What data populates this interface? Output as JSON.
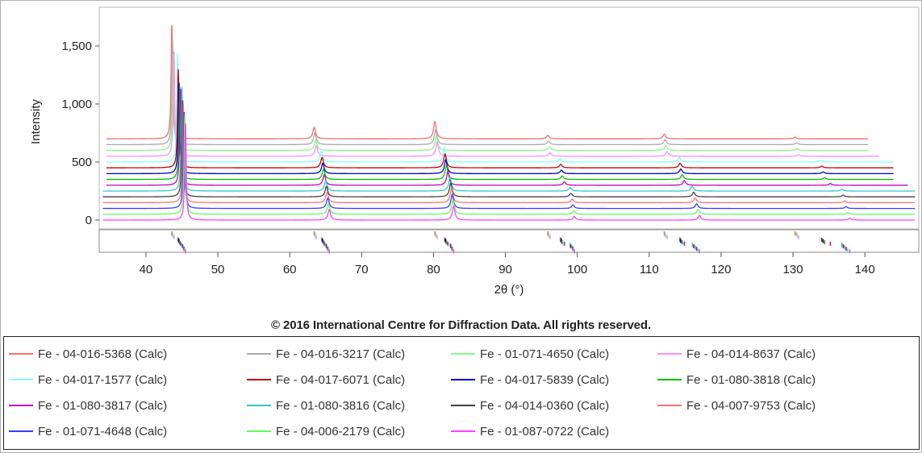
{
  "chart_data": {
    "type": "line",
    "title": "",
    "xlabel": "2θ (°)",
    "ylabel": "Intensity",
    "xlim": [
      33.5,
      147.5
    ],
    "ylim": [
      0,
      1700
    ],
    "xticks": [
      "40",
      "50",
      "60",
      "70",
      "80",
      "90",
      "100",
      "110",
      "120",
      "130",
      "140"
    ],
    "yticks": [
      "0",
      "500",
      "1,000",
      "1,500"
    ],
    "legend_position": "bottom",
    "grid": false,
    "series": [
      {
        "name": "Fe - 04-016-5368 (Calc)",
        "color": "#ff6b6b",
        "offset": 700,
        "x_start": 34.5,
        "x_end": 140.5,
        "peaks": [
          {
            "x": 43.6,
            "h": 1000
          },
          {
            "x": 63.4,
            "h": 100
          },
          {
            "x": 80.2,
            "h": 150
          },
          {
            "x": 95.9,
            "h": 30
          },
          {
            "x": 112.1,
            "h": 40
          },
          {
            "x": 130.3,
            "h": 15
          }
        ]
      },
      {
        "name": "Fe - 04-016-3217 (Calc)",
        "color": "#a8a8a8",
        "offset": 650,
        "x_start": 34.5,
        "x_end": 140.5,
        "peaks": [
          {
            "x": 43.7,
            "h": 900
          },
          {
            "x": 63.5,
            "h": 100
          },
          {
            "x": 80.3,
            "h": 130
          },
          {
            "x": 96.0,
            "h": 30
          },
          {
            "x": 112.2,
            "h": 40
          },
          {
            "x": 130.5,
            "h": 15
          }
        ]
      },
      {
        "name": "Fe - 01-071-4650 (Calc)",
        "color": "#7fff7f",
        "offset": 600,
        "x_start": 34.5,
        "x_end": 140.5,
        "peaks": [
          {
            "x": 43.8,
            "h": 850
          },
          {
            "x": 63.6,
            "h": 90
          },
          {
            "x": 80.4,
            "h": 120
          },
          {
            "x": 96.1,
            "h": 30
          },
          {
            "x": 112.3,
            "h": 40
          },
          {
            "x": 130.6,
            "h": 15
          }
        ]
      },
      {
        "name": "Fe - 04-014-8637 (Calc)",
        "color": "#ff8cff",
        "offset": 550,
        "x_start": 34.5,
        "x_end": 142.0,
        "peaks": [
          {
            "x": 43.9,
            "h": 900
          },
          {
            "x": 63.7,
            "h": 90
          },
          {
            "x": 80.5,
            "h": 120
          },
          {
            "x": 96.2,
            "h": 30
          },
          {
            "x": 112.5,
            "h": 40
          },
          {
            "x": 130.8,
            "h": 15
          }
        ]
      },
      {
        "name": "Fe - 04-017-1577 (Calc)",
        "color": "#7fffff",
        "offset": 500,
        "x_start": 34.5,
        "x_end": 144.0,
        "peaks": [
          {
            "x": 44.4,
            "h": 950
          },
          {
            "x": 64.4,
            "h": 90
          },
          {
            "x": 81.5,
            "h": 120
          },
          {
            "x": 97.6,
            "h": 30
          },
          {
            "x": 114.2,
            "h": 40
          },
          {
            "x": 133.8,
            "h": 15
          }
        ]
      },
      {
        "name": "Fe - 04-017-6071 (Calc)",
        "color": "#c00000",
        "offset": 450,
        "x_start": 34.5,
        "x_end": 144.0,
        "peaks": [
          {
            "x": 44.5,
            "h": 850
          },
          {
            "x": 64.5,
            "h": 90
          },
          {
            "x": 81.6,
            "h": 120
          },
          {
            "x": 97.7,
            "h": 30
          },
          {
            "x": 114.3,
            "h": 40
          },
          {
            "x": 134.0,
            "h": 15
          }
        ]
      },
      {
        "name": "Fe - 04-017-5839 (Calc)",
        "color": "#0000cc",
        "offset": 400,
        "x_start": 34.5,
        "x_end": 144.0,
        "peaks": [
          {
            "x": 44.6,
            "h": 800
          },
          {
            "x": 64.6,
            "h": 90
          },
          {
            "x": 81.7,
            "h": 120
          },
          {
            "x": 97.8,
            "h": 30
          },
          {
            "x": 114.4,
            "h": 40
          },
          {
            "x": 134.2,
            "h": 15
          }
        ]
      },
      {
        "name": "Fe - 01-080-3818 (Calc)",
        "color": "#00c000",
        "offset": 350,
        "x_start": 34.5,
        "x_end": 144.0,
        "peaks": [
          {
            "x": 44.7,
            "h": 800
          },
          {
            "x": 64.7,
            "h": 90
          },
          {
            "x": 81.8,
            "h": 120
          },
          {
            "x": 97.9,
            "h": 30
          },
          {
            "x": 114.6,
            "h": 40
          },
          {
            "x": 134.4,
            "h": 15
          }
        ]
      },
      {
        "name": "Fe - 01-080-3817 (Calc)",
        "color": "#c000c0",
        "offset": 300,
        "x_start": 34.5,
        "x_end": 146.0,
        "peaks": [
          {
            "x": 44.8,
            "h": 850
          },
          {
            "x": 64.8,
            "h": 90
          },
          {
            "x": 82.0,
            "h": 120
          },
          {
            "x": 98.2,
            "h": 30
          },
          {
            "x": 114.9,
            "h": 40
          },
          {
            "x": 135.2,
            "h": 15
          }
        ]
      },
      {
        "name": "Fe - 01-080-3816 (Calc)",
        "color": "#30c8c8",
        "offset": 250,
        "x_start": 34.0,
        "x_end": 147.0,
        "peaks": [
          {
            "x": 45.0,
            "h": 900
          },
          {
            "x": 65.0,
            "h": 90
          },
          {
            "x": 82.3,
            "h": 120
          },
          {
            "x": 99.0,
            "h": 30
          },
          {
            "x": 116.0,
            "h": 40
          },
          {
            "x": 136.8,
            "h": 15
          }
        ]
      },
      {
        "name": "Fe - 04-014-0360 (Calc)",
        "color": "#404040",
        "offset": 200,
        "x_start": 34.0,
        "x_end": 147.0,
        "peaks": [
          {
            "x": 45.1,
            "h": 850
          },
          {
            "x": 65.1,
            "h": 90
          },
          {
            "x": 82.4,
            "h": 120
          },
          {
            "x": 99.1,
            "h": 30
          },
          {
            "x": 116.2,
            "h": 40
          },
          {
            "x": 137.0,
            "h": 15
          }
        ]
      },
      {
        "name": "Fe - 04-007-9753 (Calc)",
        "color": "#ff7070",
        "offset": 150,
        "x_start": 34.0,
        "x_end": 147.0,
        "peaks": [
          {
            "x": 45.2,
            "h": 850
          },
          {
            "x": 65.2,
            "h": 90
          },
          {
            "x": 82.5,
            "h": 120
          },
          {
            "x": 99.3,
            "h": 30
          },
          {
            "x": 116.4,
            "h": 40
          },
          {
            "x": 137.2,
            "h": 15
          }
        ]
      },
      {
        "name": "Fe - 01-071-4648 (Calc)",
        "color": "#3a3aff",
        "offset": 100,
        "x_start": 34.0,
        "x_end": 147.0,
        "peaks": [
          {
            "x": 45.3,
            "h": 850
          },
          {
            "x": 65.3,
            "h": 90
          },
          {
            "x": 82.6,
            "h": 120
          },
          {
            "x": 99.4,
            "h": 30
          },
          {
            "x": 116.6,
            "h": 40
          },
          {
            "x": 137.4,
            "h": 15
          }
        ]
      },
      {
        "name": "Fe - 04-006-2179 (Calc)",
        "color": "#5cff5c",
        "offset": 50,
        "x_start": 34.0,
        "x_end": 147.0,
        "peaks": [
          {
            "x": 45.4,
            "h": 850
          },
          {
            "x": 65.4,
            "h": 90
          },
          {
            "x": 82.7,
            "h": 120
          },
          {
            "x": 99.5,
            "h": 30
          },
          {
            "x": 116.8,
            "h": 40
          },
          {
            "x": 137.6,
            "h": 15
          }
        ]
      },
      {
        "name": "Fe - 01-087-0722 (Calc)",
        "color": "#ff40ff",
        "offset": 0,
        "x_start": 34.0,
        "x_end": 147.0,
        "peaks": [
          {
            "x": 45.5,
            "h": 850
          },
          {
            "x": 65.5,
            "h": 90
          },
          {
            "x": 82.8,
            "h": 120
          },
          {
            "x": 99.6,
            "h": 30
          },
          {
            "x": 117.0,
            "h": 40
          },
          {
            "x": 137.9,
            "h": 15
          }
        ]
      }
    ]
  },
  "footer": {
    "copyright": "© 2016 International Centre for Diffraction Data. All rights reserved."
  }
}
